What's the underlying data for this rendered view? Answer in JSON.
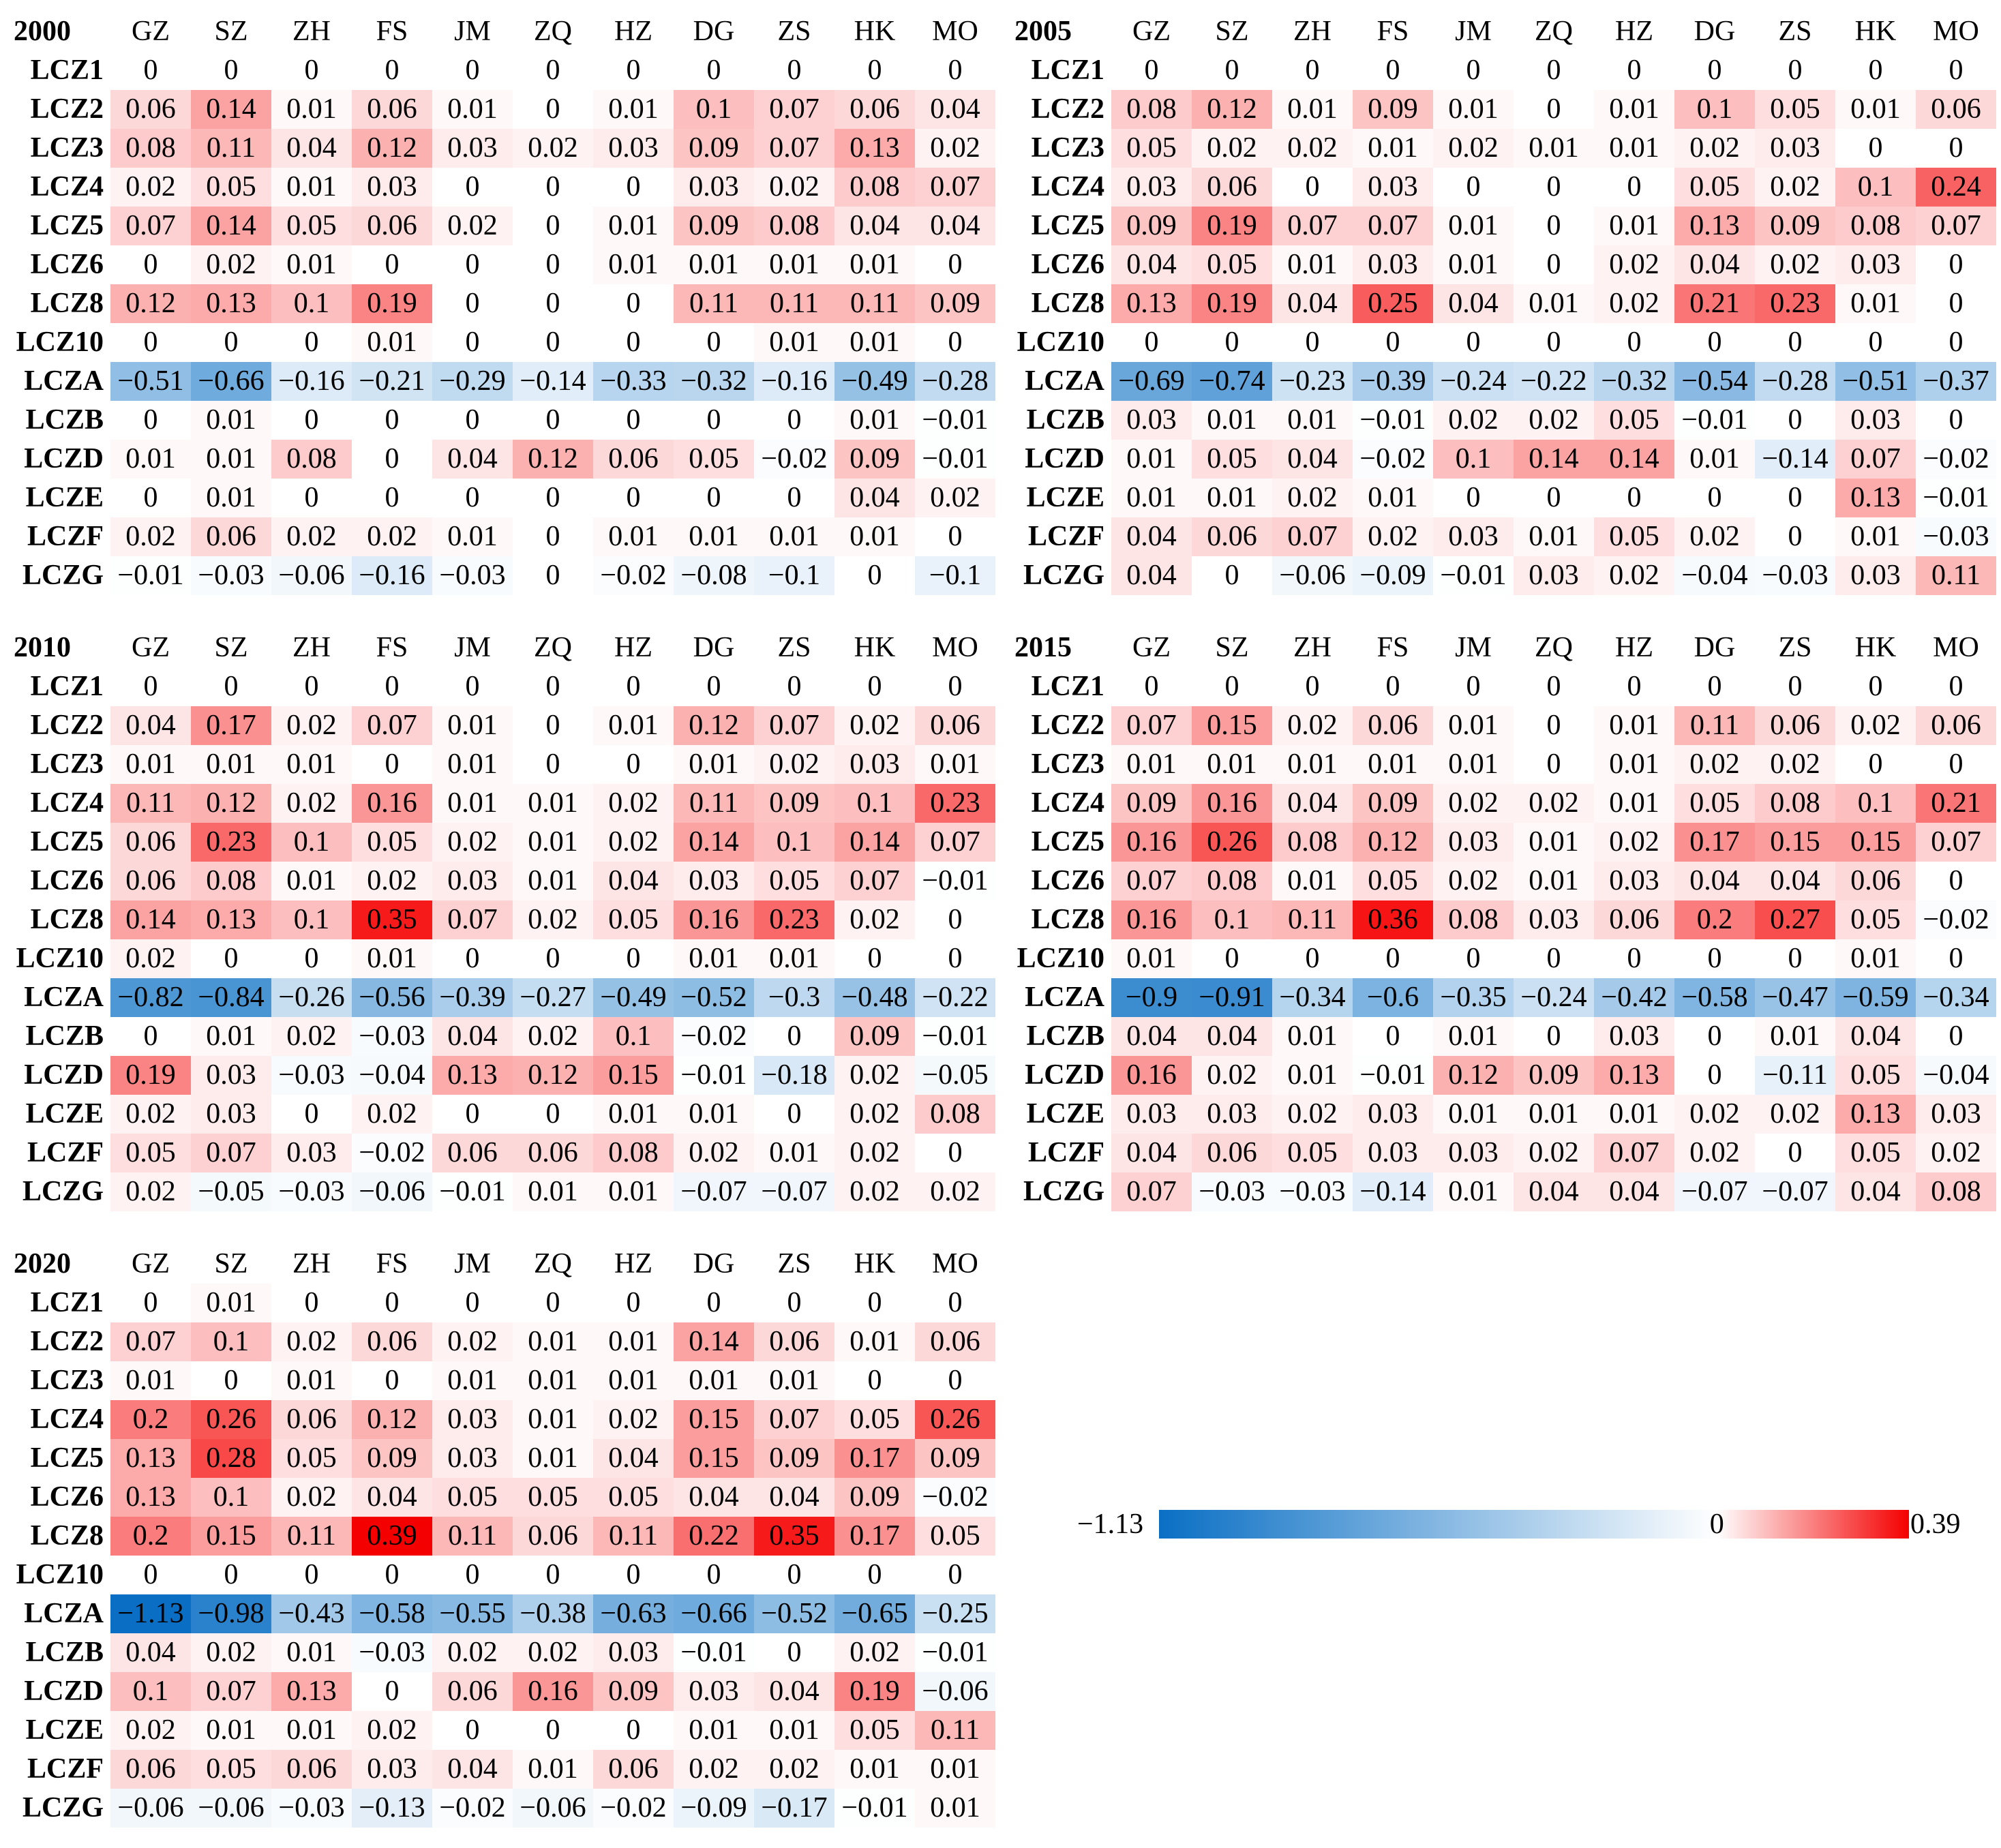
{
  "chart_data": {
    "type": "heatmap",
    "columns": [
      "GZ",
      "SZ",
      "ZH",
      "FS",
      "JM",
      "ZQ",
      "HZ",
      "DG",
      "ZS",
      "HK",
      "MO"
    ],
    "rows": [
      "LCZ1",
      "LCZ2",
      "LCZ3",
      "LCZ4",
      "LCZ5",
      "LCZ6",
      "LCZ8",
      "LCZ10",
      "LCZA",
      "LCZB",
      "LCZD",
      "LCZE",
      "LCZF",
      "LCZG"
    ],
    "colorbar": {
      "min": -1.13,
      "mid": 0,
      "max": 0.39,
      "min_label": "−1.13",
      "mid_label": "0",
      "max_label": "0.39",
      "colors": {
        "negative": "#0a6fc4",
        "zero": "#ffffff",
        "positive": "#f50000"
      }
    },
    "panels": [
      {
        "year": "2000",
        "values": [
          [
            0,
            0,
            0,
            0,
            0,
            0,
            0,
            0,
            0,
            0,
            0
          ],
          [
            0.06,
            0.14,
            0.01,
            0.06,
            0.01,
            0,
            0.01,
            0.1,
            0.07,
            0.06,
            0.04
          ],
          [
            0.08,
            0.11,
            0.04,
            0.12,
            0.03,
            0.02,
            0.03,
            0.09,
            0.07,
            0.13,
            0.02
          ],
          [
            0.02,
            0.05,
            0.01,
            0.03,
            0,
            0,
            0,
            0.03,
            0.02,
            0.08,
            0.07
          ],
          [
            0.07,
            0.14,
            0.05,
            0.06,
            0.02,
            0,
            0.01,
            0.09,
            0.08,
            0.04,
            0.04
          ],
          [
            0,
            0.02,
            0.01,
            0,
            0,
            0,
            0.01,
            0.01,
            0.01,
            0.01,
            0
          ],
          [
            0.12,
            0.13,
            0.1,
            0.19,
            0,
            0,
            0,
            0.11,
            0.11,
            0.11,
            0.09
          ],
          [
            0,
            0,
            0,
            0.01,
            0,
            0,
            0,
            0,
            0.01,
            0.01,
            0
          ],
          [
            -0.51,
            -0.66,
            -0.16,
            -0.21,
            -0.29,
            -0.14,
            -0.33,
            -0.32,
            -0.16,
            -0.49,
            -0.28
          ],
          [
            0,
            0.01,
            0,
            0,
            0,
            0,
            0,
            0,
            0,
            0.01,
            -0.01
          ],
          [
            0.01,
            0.01,
            0.08,
            0,
            0.04,
            0.12,
            0.06,
            0.05,
            -0.02,
            0.09,
            -0.01
          ],
          [
            0,
            0.01,
            0,
            0,
            0,
            0,
            0,
            0,
            0,
            0.04,
            0.02
          ],
          [
            0.02,
            0.06,
            0.02,
            0.02,
            0.01,
            0,
            0.01,
            0.01,
            0.01,
            0.01,
            0
          ],
          [
            -0.01,
            -0.03,
            -0.06,
            -0.16,
            -0.03,
            0,
            -0.02,
            -0.08,
            -0.1,
            0,
            -0.1
          ]
        ]
      },
      {
        "year": "2005",
        "values": [
          [
            0,
            0,
            0,
            0,
            0,
            0,
            0,
            0,
            0,
            0,
            0
          ],
          [
            0.08,
            0.12,
            0.01,
            0.09,
            0.01,
            0,
            0.01,
            0.1,
            0.05,
            0.01,
            0.06
          ],
          [
            0.05,
            0.02,
            0.02,
            0.01,
            0.02,
            0.01,
            0.01,
            0.02,
            0.03,
            0,
            0
          ],
          [
            0.03,
            0.06,
            0,
            0.03,
            0,
            0,
            0,
            0.05,
            0.02,
            0.1,
            0.24
          ],
          [
            0.09,
            0.19,
            0.07,
            0.07,
            0.01,
            0,
            0.01,
            0.13,
            0.09,
            0.08,
            0.07
          ],
          [
            0.04,
            0.05,
            0.01,
            0.03,
            0.01,
            0,
            0.02,
            0.04,
            0.02,
            0.03,
            0
          ],
          [
            0.13,
            0.19,
            0.04,
            0.25,
            0.04,
            0.01,
            0.02,
            0.21,
            0.23,
            0.01,
            0
          ],
          [
            0,
            0,
            0,
            0,
            0,
            0,
            0,
            0,
            0,
            0,
            0
          ],
          [
            -0.69,
            -0.74,
            -0.23,
            -0.39,
            -0.24,
            -0.22,
            -0.32,
            -0.54,
            -0.28,
            -0.51,
            -0.37
          ],
          [
            0.03,
            0.01,
            0.01,
            -0.01,
            0.02,
            0.02,
            0.05,
            -0.01,
            0,
            0.03,
            0
          ],
          [
            0.01,
            0.05,
            0.04,
            -0.02,
            0.1,
            0.14,
            0.14,
            0.01,
            -0.14,
            0.07,
            -0.02
          ],
          [
            0.01,
            0.01,
            0.02,
            0.01,
            0,
            0,
            0,
            0,
            0,
            0.13,
            -0.01
          ],
          [
            0.04,
            0.06,
            0.07,
            0.02,
            0.03,
            0.01,
            0.05,
            0.02,
            0,
            0.01,
            -0.03
          ],
          [
            0.04,
            0,
            -0.06,
            -0.09,
            -0.01,
            0.03,
            0.02,
            -0.04,
            -0.03,
            0.03,
            0.11
          ]
        ]
      },
      {
        "year": "2010",
        "values": [
          [
            0,
            0,
            0,
            0,
            0,
            0,
            0,
            0,
            0,
            0,
            0
          ],
          [
            0.04,
            0.17,
            0.02,
            0.07,
            0.01,
            0,
            0.01,
            0.12,
            0.07,
            0.02,
            0.06
          ],
          [
            0.01,
            0.01,
            0.01,
            0,
            0.01,
            0,
            0,
            0.01,
            0.02,
            0.03,
            0.01
          ],
          [
            0.11,
            0.12,
            0.02,
            0.16,
            0.01,
            0.01,
            0.02,
            0.11,
            0.09,
            0.1,
            0.23
          ],
          [
            0.06,
            0.23,
            0.1,
            0.05,
            0.02,
            0.01,
            0.02,
            0.14,
            0.1,
            0.14,
            0.07
          ],
          [
            0.06,
            0.08,
            0.01,
            0.02,
            0.03,
            0.01,
            0.04,
            0.03,
            0.05,
            0.07,
            -0.01
          ],
          [
            0.14,
            0.13,
            0.1,
            0.35,
            0.07,
            0.02,
            0.05,
            0.16,
            0.23,
            0.02,
            0
          ],
          [
            0.02,
            0,
            0,
            0.01,
            0,
            0,
            0,
            0.01,
            0.01,
            0,
            0
          ],
          [
            -0.82,
            -0.84,
            -0.26,
            -0.56,
            -0.39,
            -0.27,
            -0.49,
            -0.52,
            -0.3,
            -0.48,
            -0.22
          ],
          [
            0,
            0.01,
            0.02,
            -0.03,
            0.04,
            0.02,
            0.1,
            -0.02,
            0,
            0.09,
            -0.01
          ],
          [
            0.19,
            0.03,
            -0.03,
            -0.04,
            0.13,
            0.12,
            0.15,
            -0.01,
            -0.18,
            0.02,
            -0.05
          ],
          [
            0.02,
            0.03,
            0,
            0.02,
            0,
            0,
            0.01,
            0.01,
            0,
            0.02,
            0.08
          ],
          [
            0.05,
            0.07,
            0.03,
            -0.02,
            0.06,
            0.06,
            0.08,
            0.02,
            0.01,
            0.02,
            0
          ],
          [
            0.02,
            -0.05,
            -0.03,
            -0.06,
            -0.01,
            0.01,
            0.01,
            -0.07,
            -0.07,
            0.02,
            0.02
          ]
        ]
      },
      {
        "year": "2015",
        "values": [
          [
            0,
            0,
            0,
            0,
            0,
            0,
            0,
            0,
            0,
            0,
            0
          ],
          [
            0.07,
            0.15,
            0.02,
            0.06,
            0.01,
            0,
            0.01,
            0.11,
            0.06,
            0.02,
            0.06
          ],
          [
            0.01,
            0.01,
            0.01,
            0.01,
            0.01,
            0,
            0.01,
            0.02,
            0.02,
            0,
            0
          ],
          [
            0.09,
            0.16,
            0.04,
            0.09,
            0.02,
            0.02,
            0.01,
            0.05,
            0.08,
            0.1,
            0.21
          ],
          [
            0.16,
            0.26,
            0.08,
            0.12,
            0.03,
            0.01,
            0.02,
            0.17,
            0.15,
            0.15,
            0.07
          ],
          [
            0.07,
            0.08,
            0.01,
            0.05,
            0.02,
            0.01,
            0.03,
            0.04,
            0.04,
            0.06,
            0
          ],
          [
            0.16,
            0.1,
            0.11,
            0.36,
            0.08,
            0.03,
            0.06,
            0.2,
            0.27,
            0.05,
            -0.02
          ],
          [
            0.01,
            0,
            0,
            0,
            0,
            0,
            0,
            0,
            0,
            0.01,
            0
          ],
          [
            -0.9,
            -0.91,
            -0.34,
            -0.6,
            -0.35,
            -0.24,
            -0.42,
            -0.58,
            -0.47,
            -0.59,
            -0.34
          ],
          [
            0.04,
            0.04,
            0.01,
            0,
            0.01,
            0,
            0.03,
            0,
            0.01,
            0.04,
            0
          ],
          [
            0.16,
            0.02,
            0.01,
            -0.01,
            0.12,
            0.09,
            0.13,
            0,
            -0.11,
            0.05,
            -0.04
          ],
          [
            0.03,
            0.03,
            0.02,
            0.03,
            0.01,
            0.01,
            0.01,
            0.02,
            0.02,
            0.13,
            0.03
          ],
          [
            0.04,
            0.06,
            0.05,
            0.03,
            0.03,
            0.02,
            0.07,
            0.02,
            0,
            0.05,
            0.02
          ],
          [
            0.07,
            -0.03,
            -0.03,
            -0.14,
            0.01,
            0.04,
            0.04,
            -0.07,
            -0.07,
            0.04,
            0.08
          ]
        ]
      },
      {
        "year": "2020",
        "values": [
          [
            0,
            0.01,
            0,
            0,
            0,
            0,
            0,
            0,
            0,
            0,
            0
          ],
          [
            0.07,
            0.1,
            0.02,
            0.06,
            0.02,
            0.01,
            0.01,
            0.14,
            0.06,
            0.01,
            0.06
          ],
          [
            0.01,
            0,
            0.01,
            0,
            0.01,
            0.01,
            0.01,
            0.01,
            0.01,
            0,
            0
          ],
          [
            0.2,
            0.26,
            0.06,
            0.12,
            0.03,
            0.01,
            0.02,
            0.15,
            0.07,
            0.05,
            0.26
          ],
          [
            0.13,
            0.28,
            0.05,
            0.09,
            0.03,
            0.01,
            0.04,
            0.15,
            0.09,
            0.17,
            0.09
          ],
          [
            0.13,
            0.1,
            0.02,
            0.04,
            0.05,
            0.05,
            0.05,
            0.04,
            0.04,
            0.09,
            -0.02
          ],
          [
            0.2,
            0.15,
            0.11,
            0.39,
            0.11,
            0.06,
            0.11,
            0.22,
            0.35,
            0.17,
            0.05
          ],
          [
            0,
            0,
            0,
            0,
            0,
            0,
            0,
            0,
            0,
            0,
            0
          ],
          [
            -1.13,
            -0.98,
            -0.43,
            -0.58,
            -0.55,
            -0.38,
            -0.63,
            -0.66,
            -0.52,
            -0.65,
            -0.25
          ],
          [
            0.04,
            0.02,
            0.01,
            -0.03,
            0.02,
            0.02,
            0.03,
            -0.01,
            0,
            0.02,
            -0.01
          ],
          [
            0.1,
            0.07,
            0.13,
            0,
            0.06,
            0.16,
            0.09,
            0.03,
            0.04,
            0.19,
            -0.06
          ],
          [
            0.02,
            0.01,
            0.01,
            0.02,
            0,
            0,
            0,
            0.01,
            0.01,
            0.05,
            0.11
          ],
          [
            0.06,
            0.05,
            0.06,
            0.03,
            0.04,
            0.01,
            0.06,
            0.02,
            0.02,
            0.01,
            0.01
          ],
          [
            -0.06,
            -0.06,
            -0.03,
            -0.13,
            -0.02,
            -0.06,
            -0.02,
            -0.09,
            -0.17,
            -0.01,
            0.01
          ]
        ]
      }
    ]
  }
}
